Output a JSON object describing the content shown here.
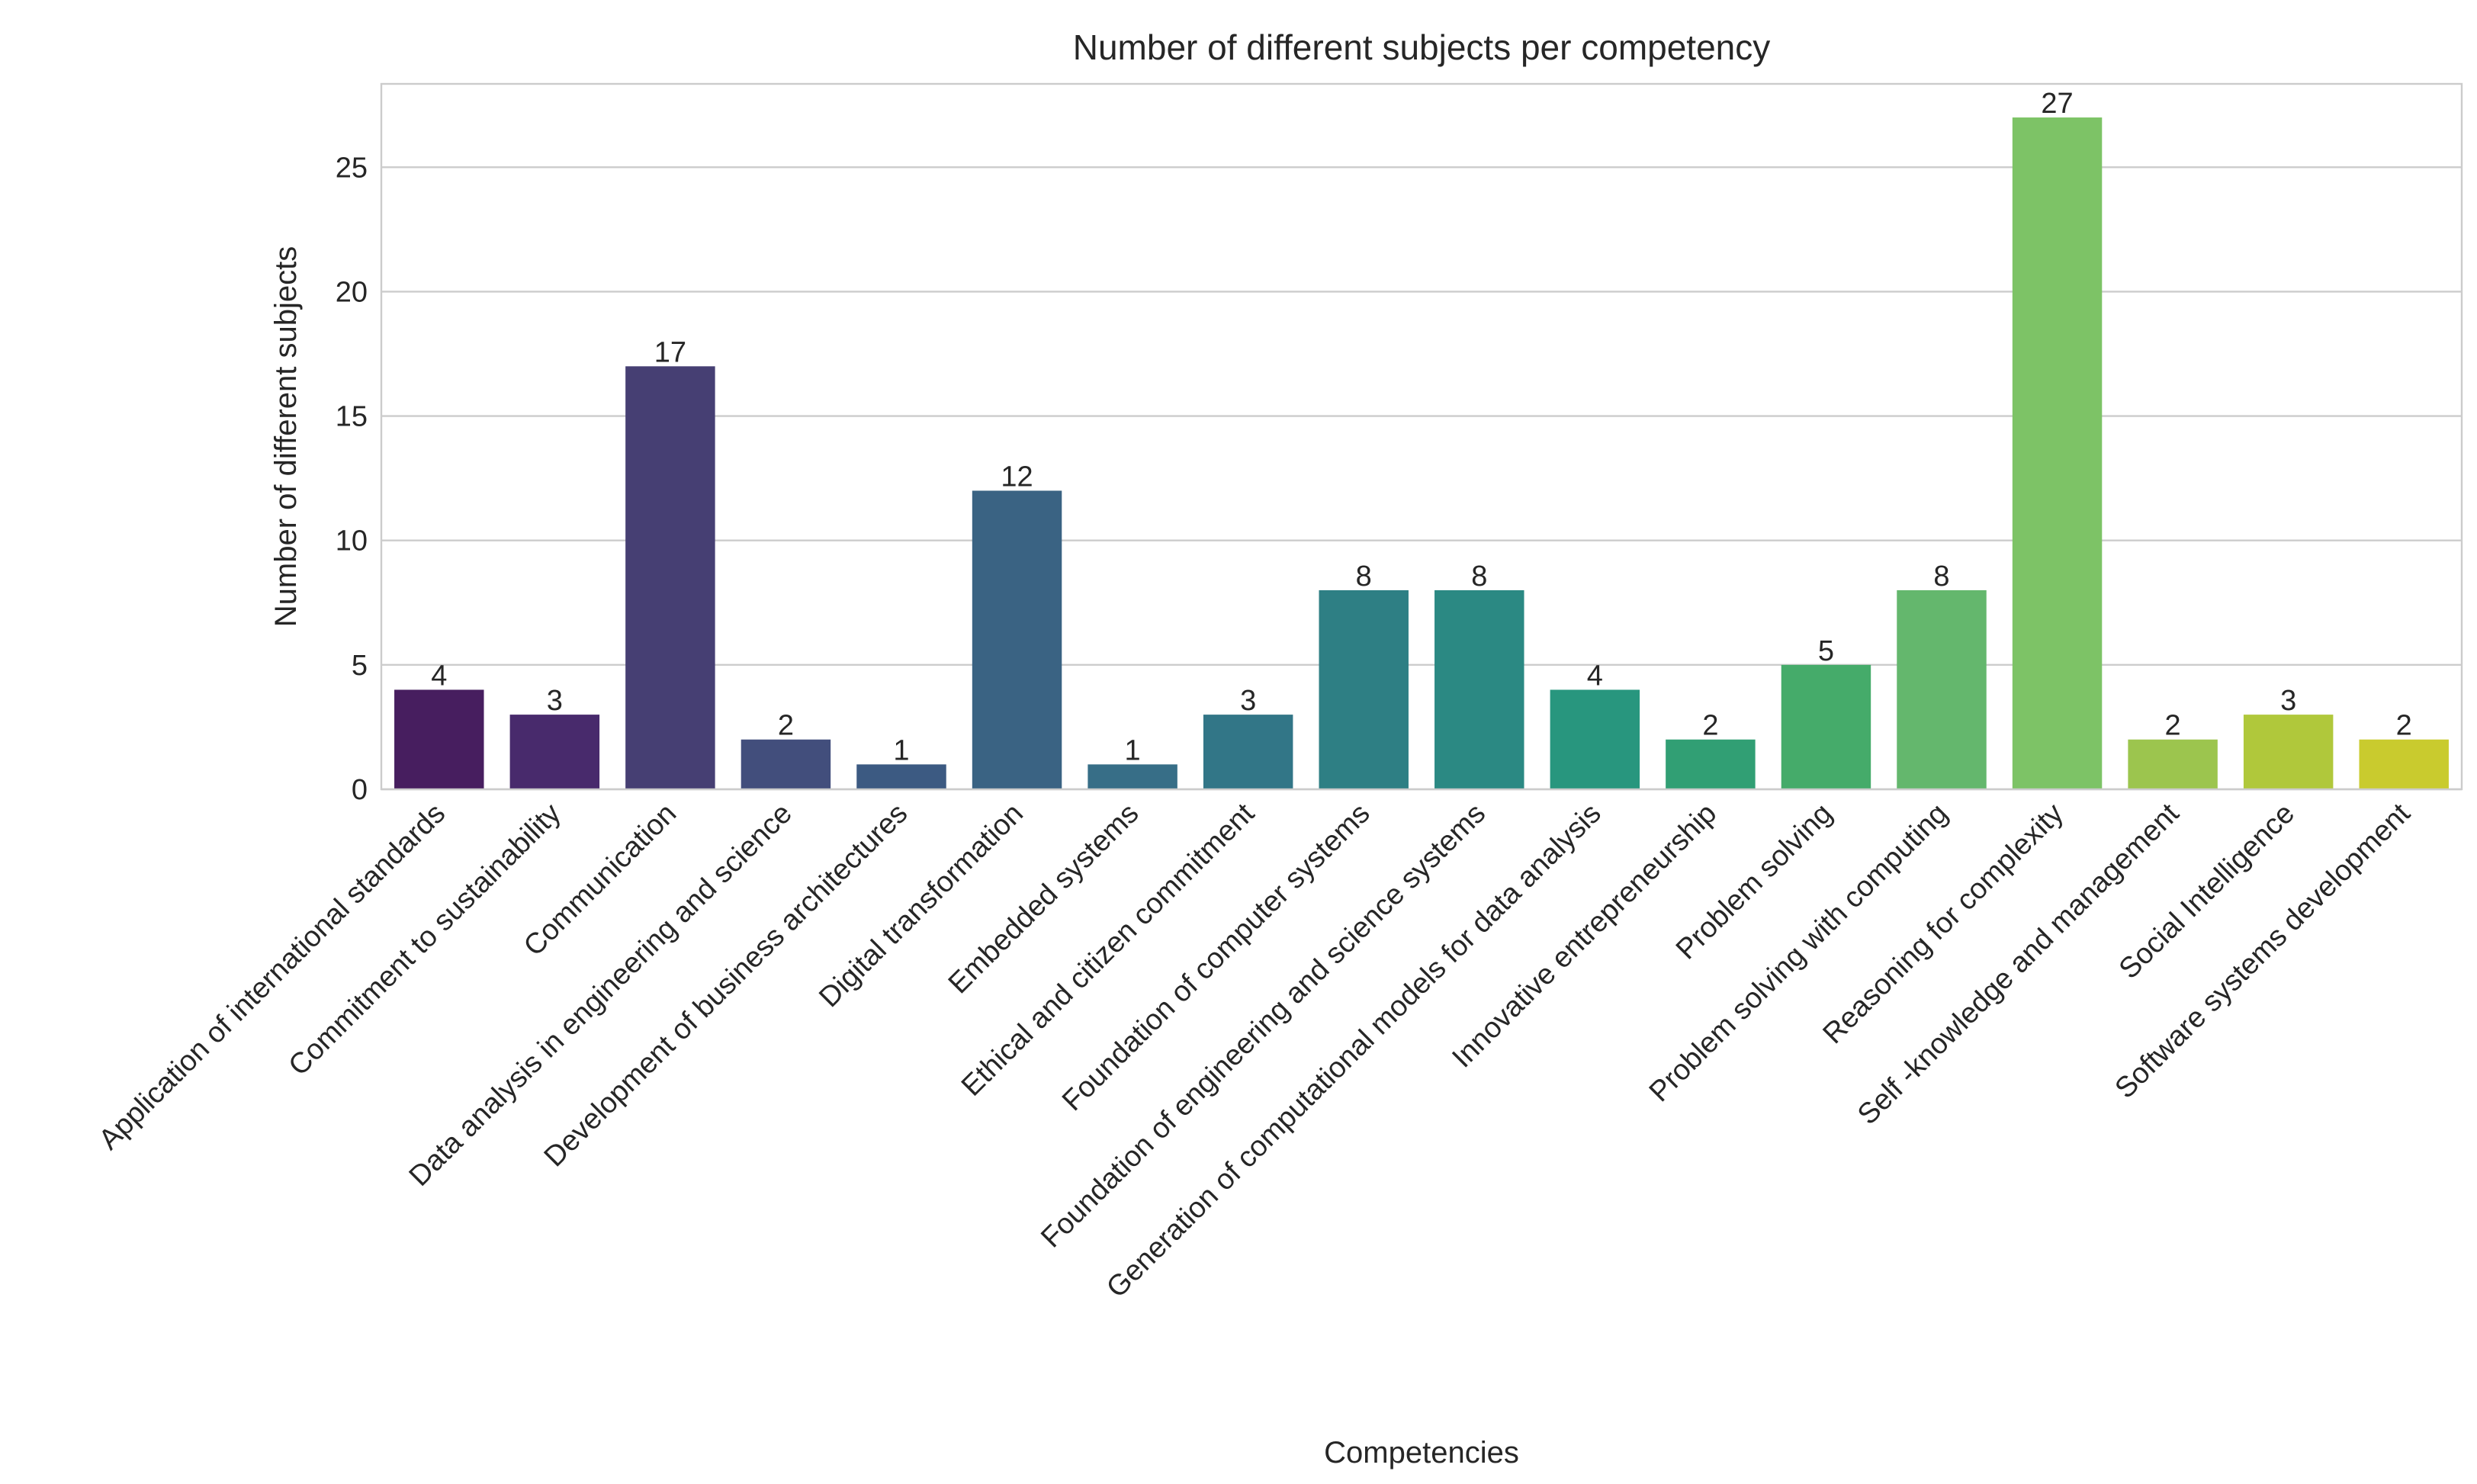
{
  "chart_data": {
    "type": "bar",
    "title": "Number of different subjects per competency",
    "xlabel": "Competencies",
    "ylabel": "Number of different subjects",
    "ylim": [
      0,
      28.35
    ],
    "yticks": [
      0,
      5,
      10,
      15,
      20,
      25
    ],
    "grid": true,
    "categories": [
      "Application of international standards",
      "Commitment to sustainability",
      "Communication",
      "Data analysis in engineering and science",
      "Development of business architectures",
      "Digital transformation",
      "Embedded systems",
      "Ethical and citizen commitment",
      "Foundation of computer systems",
      "Foundation of engineering and science systems",
      "Generation of computational models for data analysis",
      "Innovative entrepreneurship",
      "Problem solving",
      "Problem solving with computing",
      "Reasoning for complexity",
      "Self -knowledge and management",
      "Social Intelligence",
      "Software systems development"
    ],
    "values": [
      4,
      3,
      17,
      2,
      1,
      12,
      1,
      3,
      8,
      8,
      4,
      2,
      5,
      8,
      27,
      2,
      3,
      2
    ],
    "data_labels": [
      "4",
      "3",
      "17",
      "2",
      "1",
      "12",
      "1",
      "3",
      "8",
      "8",
      "4",
      "2",
      "5",
      "8",
      "27",
      "2",
      "3",
      "2"
    ],
    "colors": [
      "#471e5f",
      "#482a6c",
      "#463f73",
      "#424e7c",
      "#3c5a82",
      "#3a6383",
      "#376e87",
      "#327687",
      "#2e7f84",
      "#2b8983",
      "#28967e",
      "#319f74",
      "#45ab6a",
      "#64b76d",
      "#7dc366",
      "#9cc54e",
      "#b0c83b",
      "#c9cb2e"
    ]
  }
}
